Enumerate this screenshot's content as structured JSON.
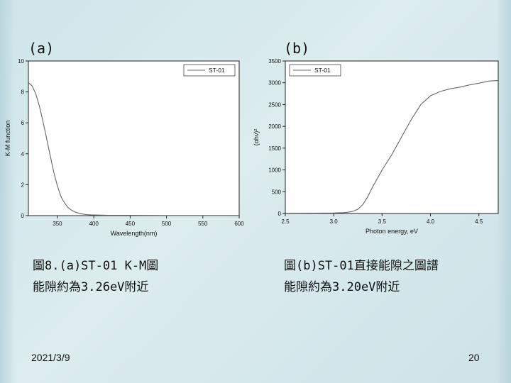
{
  "slide": {
    "label_a": "(a)",
    "label_b": "(b)",
    "caption_a_line1": "圖8.(a)ST-01 K-M圖",
    "caption_a_line2": "能隙約為3.26eV附近",
    "caption_b_line1": "圖(b)ST-01直接能隙之圖譜",
    "caption_b_line2": "能隙約為3.20eV附近",
    "date": "2021/3/9",
    "page_number": "20"
  },
  "chart_data": [
    {
      "type": "line",
      "title": "",
      "xlabel": "Wavelength(nm)",
      "ylabel": "K-M function",
      "xlim": [
        310,
        600
      ],
      "ylim": [
        0,
        10
      ],
      "xticks": [
        350,
        400,
        450,
        500,
        550,
        600
      ],
      "yticks": [
        0,
        2,
        4,
        6,
        8,
        10
      ],
      "legend_position": "top-right",
      "series": [
        {
          "name": "ST-01",
          "x": [
            310,
            315,
            320,
            325,
            330,
            335,
            340,
            345,
            350,
            355,
            360,
            365,
            370,
            375,
            380,
            385,
            390,
            395,
            400,
            410,
            420,
            450,
            500,
            550,
            600
          ],
          "y": [
            8.6,
            8.4,
            7.9,
            7.1,
            6.1,
            5.0,
            3.9,
            2.8,
            1.9,
            1.2,
            0.8,
            0.5,
            0.33,
            0.22,
            0.15,
            0.1,
            0.07,
            0.05,
            0.04,
            0.03,
            0.02,
            0.02,
            0.01,
            0.01,
            0.01
          ]
        }
      ]
    },
    {
      "type": "line",
      "title": "",
      "xlabel": "Photon energy, eV",
      "ylabel": "(αhν)²",
      "xlim": [
        2.5,
        4.7
      ],
      "ylim": [
        0,
        3500
      ],
      "xticks": [
        2.5,
        3.0,
        3.5,
        4.0,
        4.5
      ],
      "yticks": [
        0,
        500,
        1000,
        1500,
        2000,
        2500,
        3000,
        3500
      ],
      "legend_position": "top-left",
      "series": [
        {
          "name": "ST-01",
          "x": [
            2.5,
            2.8,
            3.0,
            3.1,
            3.15,
            3.2,
            3.25,
            3.3,
            3.35,
            3.4,
            3.5,
            3.6,
            3.7,
            3.8,
            3.9,
            4.0,
            4.1,
            4.2,
            4.3,
            4.4,
            4.5,
            4.6,
            4.7
          ],
          "y": [
            5,
            8,
            12,
            20,
            30,
            50,
            100,
            200,
            380,
            600,
            1000,
            1350,
            1750,
            2150,
            2500,
            2700,
            2800,
            2860,
            2900,
            2950,
            2990,
            3040,
            3050
          ]
        }
      ]
    }
  ]
}
